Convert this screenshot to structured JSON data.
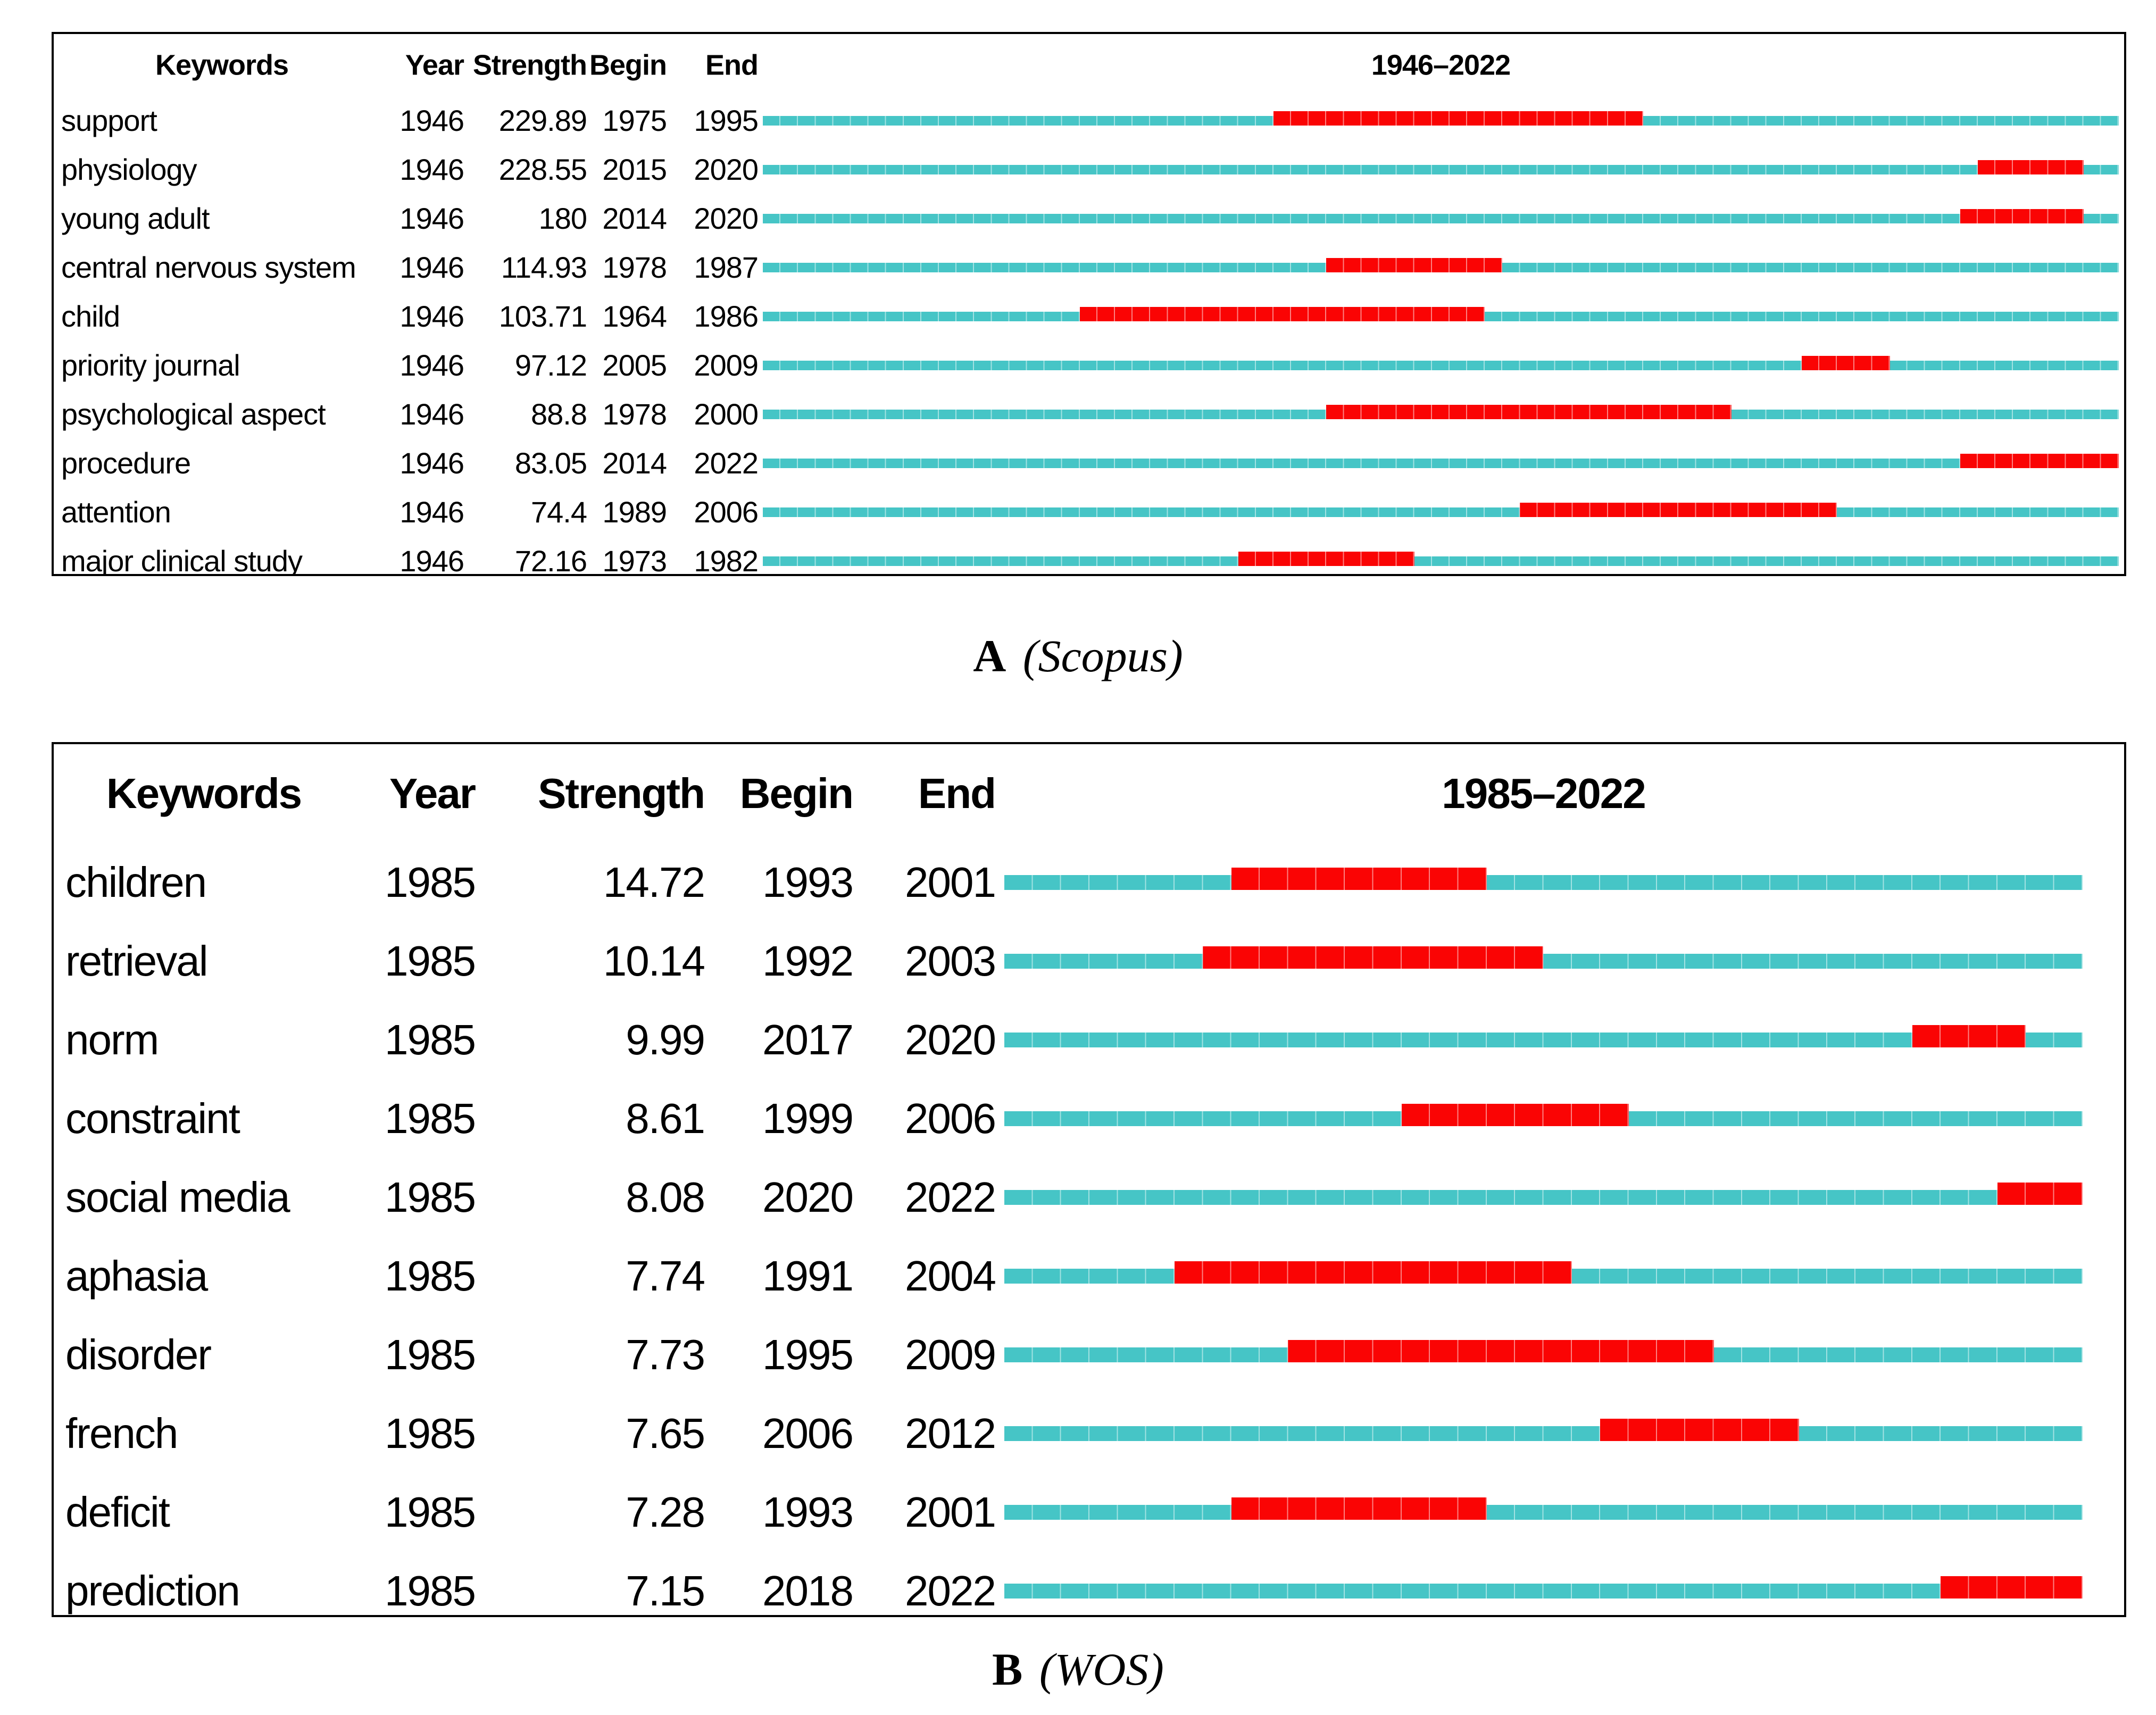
{
  "page": {
    "background": "#ffffff"
  },
  "chart_data": [
    {
      "type": "bar",
      "panel": "A",
      "caption": {
        "label": "A",
        "source": "(Scopus)"
      },
      "title": "1946–2022",
      "columns": [
        "Keywords",
        "Year",
        "Strength",
        "Begin",
        "End"
      ],
      "timeline": {
        "start": 1946,
        "end": 2022
      },
      "colors": {
        "track": "#46c5c6",
        "burst": "#fa0404"
      },
      "legend_position": "none",
      "grid": "per-year white dividers on bars",
      "rows": [
        {
          "keyword": "support",
          "year": 1946,
          "strength": "229.89",
          "begin": 1975,
          "end": 1995
        },
        {
          "keyword": "physiology",
          "year": 1946,
          "strength": "228.55",
          "begin": 2015,
          "end": 2020
        },
        {
          "keyword": "young adult",
          "year": 1946,
          "strength": "180",
          "begin": 2014,
          "end": 2020
        },
        {
          "keyword": "central nervous system",
          "year": 1946,
          "strength": "114.93",
          "begin": 1978,
          "end": 1987
        },
        {
          "keyword": "child",
          "year": 1946,
          "strength": "103.71",
          "begin": 1964,
          "end": 1986
        },
        {
          "keyword": "priority journal",
          "year": 1946,
          "strength": "97.12",
          "begin": 2005,
          "end": 2009
        },
        {
          "keyword": "psychological aspect",
          "year": 1946,
          "strength": "88.8",
          "begin": 1978,
          "end": 2000
        },
        {
          "keyword": "procedure",
          "year": 1946,
          "strength": "83.05",
          "begin": 2014,
          "end": 2022
        },
        {
          "keyword": "attention",
          "year": 1946,
          "strength": "74.4",
          "begin": 1989,
          "end": 2006
        },
        {
          "keyword": "major clinical study",
          "year": 1946,
          "strength": "72.16",
          "begin": 1973,
          "end": 1982
        }
      ]
    },
    {
      "type": "bar",
      "panel": "B",
      "caption": {
        "label": "B",
        "source": "(WOS)"
      },
      "title": "1985–2022",
      "columns": [
        "Keywords",
        "Year",
        "Strength",
        "Begin",
        "End"
      ],
      "timeline": {
        "start": 1985,
        "end": 2022
      },
      "colors": {
        "track": "#46c5c6",
        "burst": "#fa0404"
      },
      "legend_position": "none",
      "grid": "per-year white dividers on bars",
      "rows": [
        {
          "keyword": "children",
          "year": 1985,
          "strength": "14.72",
          "begin": 1993,
          "end": 2001
        },
        {
          "keyword": "retrieval",
          "year": 1985,
          "strength": "10.14",
          "begin": 1992,
          "end": 2003
        },
        {
          "keyword": "norm",
          "year": 1985,
          "strength": "9.99",
          "begin": 2017,
          "end": 2020
        },
        {
          "keyword": "constraint",
          "year": 1985,
          "strength": "8.61",
          "begin": 1999,
          "end": 2006
        },
        {
          "keyword": "social media",
          "year": 1985,
          "strength": "8.08",
          "begin": 2020,
          "end": 2022
        },
        {
          "keyword": "aphasia",
          "year": 1985,
          "strength": "7.74",
          "begin": 1991,
          "end": 2004
        },
        {
          "keyword": "disorder",
          "year": 1985,
          "strength": "7.73",
          "begin": 1995,
          "end": 2009
        },
        {
          "keyword": "french",
          "year": 1985,
          "strength": "7.65",
          "begin": 2006,
          "end": 2012
        },
        {
          "keyword": "deficit",
          "year": 1985,
          "strength": "7.28",
          "begin": 1993,
          "end": 2001
        },
        {
          "keyword": "prediction",
          "year": 1985,
          "strength": "7.15",
          "begin": 2018,
          "end": 2022
        }
      ]
    }
  ]
}
